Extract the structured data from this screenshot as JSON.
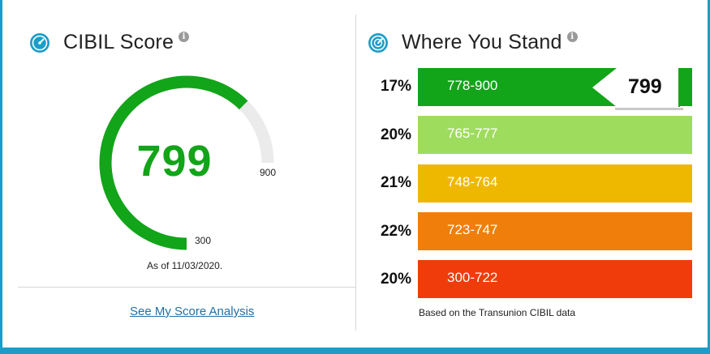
{
  "cibil_panel": {
    "title": "CIBIL Score",
    "score": "799",
    "max_label": "900",
    "min_label": "300",
    "score_min": 300,
    "score_max": 900,
    "score_value": 799,
    "as_of": "As of 11/03/2020.",
    "analysis_link": "See My Score Analysis"
  },
  "stand_panel": {
    "title": "Where You Stand",
    "marker_value": "799",
    "bands": [
      {
        "range": "778-900",
        "percent": "17%",
        "color": "#12a419"
      },
      {
        "range": "765-777",
        "percent": "20%",
        "color": "#9edc5e"
      },
      {
        "range": "748-764",
        "percent": "21%",
        "color": "#eeb800"
      },
      {
        "range": "723-747",
        "percent": "22%",
        "color": "#ef7f0a"
      },
      {
        "range": "300-722",
        "percent": "20%",
        "color": "#f03c0a"
      }
    ],
    "source_note": "Based on the Transunion CIBIL data"
  },
  "colors": {
    "frame": "#1a9ec9",
    "gauge_fill": "#12a419",
    "gauge_track": "#ebebeb",
    "link": "#1f6fa6"
  },
  "icons": {
    "score": "speedometer-icon",
    "stand": "dashboard-icon",
    "info": "info-icon"
  }
}
